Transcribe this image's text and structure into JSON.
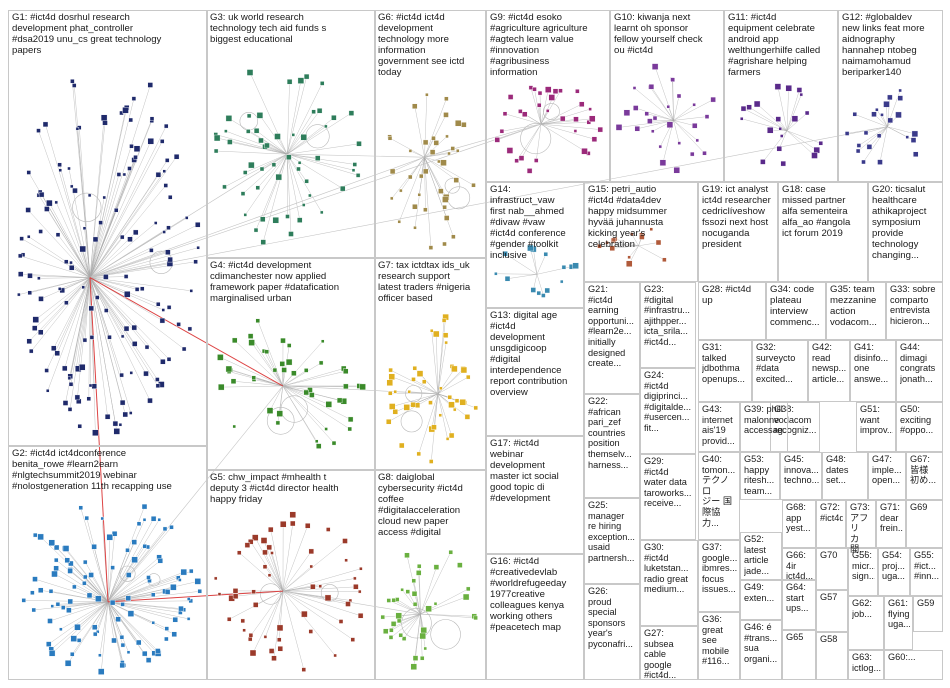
{
  "title": "",
  "colors": {
    "G1": "#1f2a6b",
    "G2": "#2a7bbf",
    "G3": "#2e7d5b",
    "G4": "#3a8a2a",
    "G5": "#9b3a2a",
    "G6": "#a08a4a",
    "G7": "#e0b020",
    "G8": "#6ab040",
    "G9": "#9b2a7a",
    "G10": "#7a3a9b",
    "G11": "#5a2a8a",
    "G12": "#3a3a8a",
    "G14": "#3a8ab0",
    "G15": "#b05a3a",
    "edge": "#a8a8a8",
    "highlight": "#e02020"
  },
  "groups": [
    {
      "id": "G1",
      "label": "G1: #ict4d dosrhul research\ndevelopment phat_controller\n#dsa2019 unu_cs great technology\npapers",
      "node_count": 150
    },
    {
      "id": "G2",
      "label": "G2: #ict4d ict4dconference\nbenita_rowe #learn2earn\n#nlgtechsummit2019 webinar\n#nolostgeneration 11th recapping use",
      "node_count": 110
    },
    {
      "id": "G3",
      "label": "G3: uk world research\ntechnology tech aid funds s\nbiggest educational",
      "node_count": 55
    },
    {
      "id": "G4",
      "label": "G4: #ict4d development\ncdimanchester now applied\nframework paper #datafication\nmarginalised urban",
      "node_count": 45
    },
    {
      "id": "G5",
      "label": "G5: chw_impact #mhealth t\ndeputy 3 #ict4d director health\nhappy friday",
      "node_count": 55
    },
    {
      "id": "G6",
      "label": "G6: #ict4d ict4d\ndevelopment\ntechnology more\ninformation\ngovernment see ictd\ntoday",
      "node_count": 40
    },
    {
      "id": "G7",
      "label": "G7: tax ictdtax ids_uk\nresearch support\nlatest traders #nigeria\nofficer based",
      "node_count": 45
    },
    {
      "id": "G8",
      "label": "G8: daiglobal\ncybersecurity #ict4d\ncoffee\n#digitalacceleration\ncloud new paper\naccess #digital",
      "node_count": 35
    },
    {
      "id": "G9",
      "label": "G9: #ict4d esoko\n#agriculture agriculture\n#agtech learn value\n#innovation\n#agribusiness\ninformation",
      "node_count": 32
    },
    {
      "id": "G10",
      "label": "G10: kiwanja next\nlearnt oh sponsor\nfellow yourself check\nou #ict4d",
      "node_count": 28
    },
    {
      "id": "G11",
      "label": "G11: #ict4d\nequipment celebrate\nandroid app\nwelthungerhilfe called\n#agrishare helping\nfarmers",
      "node_count": 20
    },
    {
      "id": "G12",
      "label": "G12: #globaldev\nnew links feat more\naidnography\nhannahep ntobeg\nnaimamohamud\nberiparker140",
      "node_count": 22
    },
    {
      "id": "G13",
      "label": "G13: digital age\n#ict4d\ndevelopment\nunsgdigicoop\n#digital\ninterdependence\nreport contribution\noverview",
      "node_count": 0
    },
    {
      "id": "G14",
      "label": "G14:\ninfrastruct_vaw\nfirst nab__ahmed\n#divaw #vaw\n#ict4d conference\n#gender #toolkit\ninclusive",
      "node_count": 14
    },
    {
      "id": "G15",
      "label": "G15: petri_autio\n#ict4d #data4dev\nhappy midsummer\nhyvää juhannusta\nkicking year's\ncelebration",
      "node_count": 14
    },
    {
      "id": "G16",
      "label": "G16: #ict4d\n#creativedevlab\n#worldrefugeeday\n1977creative\ncolleagues kenya\nworking others\n#peacetech map",
      "node_count": 0
    },
    {
      "id": "G17",
      "label": "G17: #ict4d\nwebinar\ndevelopment\nmaster ict social\ngood topic di\n#development",
      "node_count": 0
    },
    {
      "id": "G18",
      "label": "G18: case\nmissed partner\nalfa sementeira\nalfa_ao #angola\nict forum 2019",
      "node_count": 0
    },
    {
      "id": "G19",
      "label": "G19: ict analyst\nict4d researcher\ncedriclíveshow\nfssozi next host\nnocuganda\npresident",
      "node_count": 0
    },
    {
      "id": "G20",
      "label": "G20: ticsalut\nhealthcare\nathikaproject\nsymposium\nprovide\ntechnology\nchanging...",
      "node_count": 0
    },
    {
      "id": "G21",
      "label": "G21:\n#ict4d\nearning\nopportuni...\n#learn2e...\ninitially\ndesigned\ncreate...",
      "node_count": 0
    },
    {
      "id": "G22",
      "label": "G22:\n#african\npari_zef\ncountries\nposition\nthemselv...\nharness...",
      "node_count": 0
    },
    {
      "id": "G23",
      "label": "G23:\n#digital\n#infrastru...\najithpper...\nicta_srila...\n#ict4d...",
      "node_count": 0
    },
    {
      "id": "G24",
      "label": "G24:\n#ict4d\ndigiprinci...\n#digitalde...\n#usercen...\nfit...",
      "node_count": 0
    },
    {
      "id": "G25",
      "label": "G25:\nmanager\nre hiring\nexception...\nusaid\npartnersh...",
      "node_count": 0
    },
    {
      "id": "G26",
      "label": "G26:\nproud\nspecial\nsponsors\nyear's\npyconafri...",
      "node_count": 0
    },
    {
      "id": "G27",
      "label": "G27:\nsubsea\ncable\ngoogle\n#ict4d...",
      "node_count": 0
    },
    {
      "id": "G28",
      "label": "G28: #ict4d\nup",
      "node_count": 0
    },
    {
      "id": "G29",
      "label": "G29:\n#ict4d\nwater data\ntaroworks...\nreceive...",
      "node_count": 0
    },
    {
      "id": "G30",
      "label": "G30:\n#ict4d\nluketstan...\nradio great\nmedium...",
      "node_count": 0
    },
    {
      "id": "G31",
      "label": "G31:\ntalked\njdbothma\nopenups...",
      "node_count": 0
    },
    {
      "id": "G32",
      "label": "G32:\nsurveycto\n#data\nexcited...",
      "node_count": 0
    },
    {
      "id": "G33",
      "label": "G33: sobre\ncomparto\nentrevista\nhicieron...",
      "node_count": 0
    },
    {
      "id": "G34",
      "label": "G34: code\nplateau\ninterview\ncommenc...",
      "node_count": 0
    },
    {
      "id": "G35",
      "label": "G35: team\nmezzanine\naction\nvodacom...",
      "node_count": 0
    },
    {
      "id": "G36",
      "label": "G36:\ngreat\nsee\nmobile\n#116...",
      "node_count": 0
    },
    {
      "id": "G37",
      "label": "G37:\ngoogle...\nibmres...\nfocus\nissues...",
      "node_count": 0
    },
    {
      "id": "G38",
      "label": "G38:\nvodacom\nrecogniz...",
      "node_count": 0
    },
    {
      "id": "G39",
      "label": "G39: phill\nmalonne\naccessag...",
      "node_count": 0
    },
    {
      "id": "G40",
      "label": "G40:\ntomon...\nテクノロ\nジー 国\n際協力...",
      "node_count": 0
    },
    {
      "id": "G41",
      "label": "G41:\ndisinfo...\none\nanswe...",
      "node_count": 0
    },
    {
      "id": "G42",
      "label": "G42:\nread\nnewsp...\narticle...",
      "node_count": 0
    },
    {
      "id": "G43",
      "label": "G43:\ninternet\nais'19\nprovid...",
      "node_count": 0
    },
    {
      "id": "G44",
      "label": "G44:\ndimagi\ncongrats\njonath...",
      "node_count": 0
    },
    {
      "id": "G45",
      "label": "G45:\ninnova...\ntechno...",
      "node_count": 0
    },
    {
      "id": "G46",
      "label": "G46: é\n#trans...\nsua\norgani...",
      "node_count": 0
    },
    {
      "id": "G47",
      "label": "G47:\nimple...\nopen...",
      "node_count": 0
    },
    {
      "id": "G48",
      "label": "G48:\ndates\nset...",
      "node_count": 0
    },
    {
      "id": "G49",
      "label": "G49:\nexten...",
      "node_count": 0
    },
    {
      "id": "G50",
      "label": "G50:\nexciting\n#oppo...",
      "node_count": 0
    },
    {
      "id": "G51",
      "label": "G51:\nwant\nimprov...",
      "node_count": 0
    },
    {
      "id": "G52",
      "label": "G52:\nlatest\narticle\njade...",
      "node_count": 0
    },
    {
      "id": "G53",
      "label": "G53:\nhappy\nritesh...\nteam...",
      "node_count": 0
    },
    {
      "id": "G54",
      "label": "G54:\nproj...\nuga...",
      "node_count": 0
    },
    {
      "id": "G55",
      "label": "G55:\n#ict...\n#inn...",
      "node_count": 0
    },
    {
      "id": "G56",
      "label": "G56:\nmicr...\nsign...",
      "node_count": 0
    },
    {
      "id": "G57",
      "label": "G57",
      "node_count": 0
    },
    {
      "id": "G58",
      "label": "G58",
      "node_count": 0
    },
    {
      "id": "G59",
      "label": "G59",
      "node_count": 0
    },
    {
      "id": "G60",
      "label": "G60:...",
      "node_count": 0
    },
    {
      "id": "G61",
      "label": "G61:\nflying\nuga...",
      "node_count": 0
    },
    {
      "id": "G62",
      "label": "G62:\njob...",
      "node_count": 0
    },
    {
      "id": "G63",
      "label": "G63:\nictlog...",
      "node_count": 0
    },
    {
      "id": "G64",
      "label": "G64:\nstart\nups...",
      "node_count": 0
    },
    {
      "id": "G65",
      "label": "G65",
      "node_count": 0
    },
    {
      "id": "G66",
      "label": "G66:\n4ir\nict4d...",
      "node_count": 0
    },
    {
      "id": "G67",
      "label": "G67:\n皆様\n初め...",
      "node_count": 0
    },
    {
      "id": "G68",
      "label": "G68:\napp\nyest...",
      "node_count": 0
    },
    {
      "id": "G69",
      "label": "G69",
      "node_count": 0
    },
    {
      "id": "G70",
      "label": "G70",
      "node_count": 0
    },
    {
      "id": "G71",
      "label": "G71:\ndear\nfrein...",
      "node_count": 0
    },
    {
      "id": "G72",
      "label": "G72:\n#ict4d",
      "node_count": 0
    },
    {
      "id": "G73",
      "label": "G73:\nアフリ\nカ開...",
      "node_count": 0
    }
  ]
}
